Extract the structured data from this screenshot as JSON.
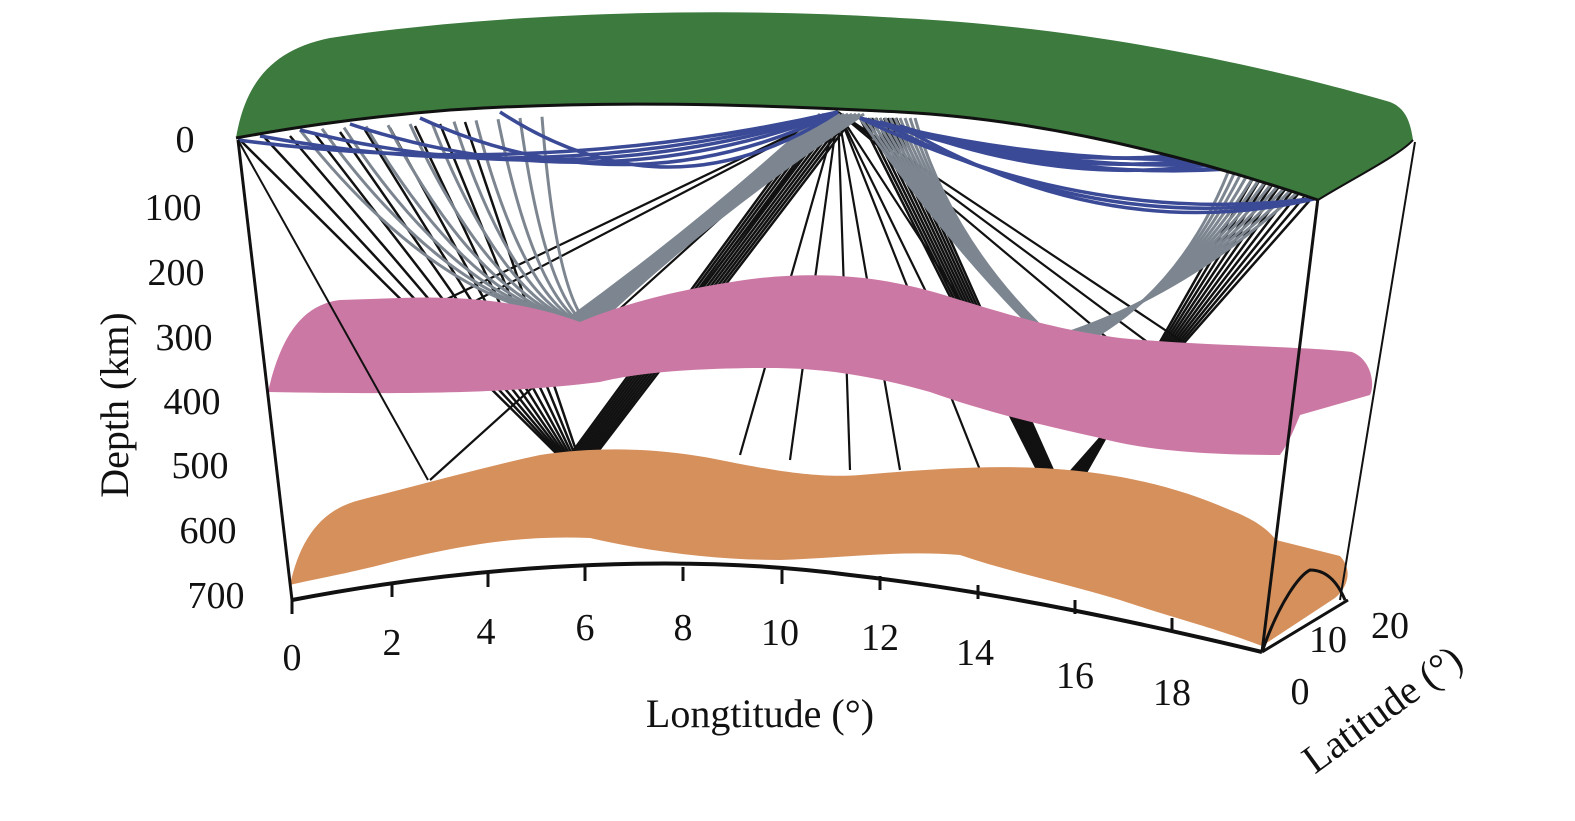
{
  "depth_axis": {
    "label": "Depth (km)",
    "ticks": [
      "0",
      "100",
      "200",
      "300",
      "400",
      "500",
      "600",
      "700"
    ]
  },
  "longitude_axis": {
    "label": "Longtitude (°)",
    "ticks": [
      "0",
      "2",
      "4",
      "6",
      "8",
      "10",
      "12",
      "14",
      "16",
      "18"
    ]
  },
  "latitude_axis": {
    "label": "Latitude (°)",
    "ticks": [
      "0",
      "10",
      "20"
    ]
  },
  "colors": {
    "surface": "#3c7a3e",
    "interface_410": "#cc78a4",
    "interface_660": "#d6905c",
    "shallow_rays": "#3b4a96",
    "mid_rays": "#7d8690",
    "deep_rays": "#111111"
  }
}
